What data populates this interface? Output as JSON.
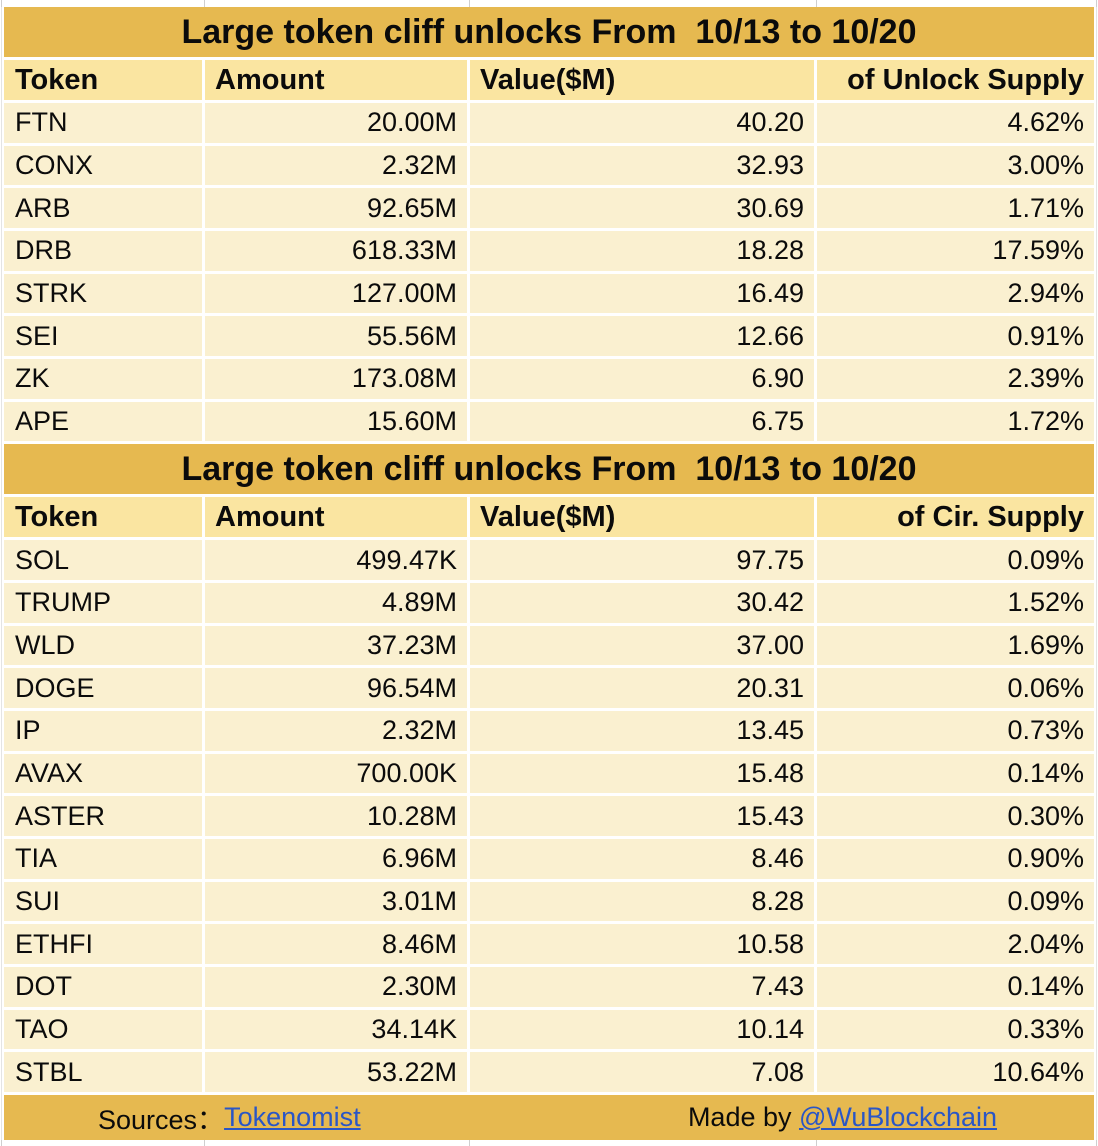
{
  "colors": {
    "title_bg": "#e6b950",
    "header_bg": "#fae5a1",
    "row_bg": "#faf0d0",
    "grid_white": "#ffffff",
    "margin_gridline": "#cfcfcf",
    "link_blue": "#2a56c6",
    "text": "#0b0b0b"
  },
  "tables": [
    {
      "title": "Large token cliff unlocks From  10/13 to 10/20",
      "columns": [
        "Token",
        "Amount",
        "Value($M)",
        "of Unlock Supply"
      ],
      "rows": [
        [
          "FTN",
          "20.00M",
          "40.20",
          "4.62%"
        ],
        [
          "CONX",
          "2.32M",
          "32.93",
          "3.00%"
        ],
        [
          "ARB",
          "92.65M",
          "30.69",
          "1.71%"
        ],
        [
          "DRB",
          "618.33M",
          "18.28",
          "17.59%"
        ],
        [
          "STRK",
          "127.00M",
          "16.49",
          "2.94%"
        ],
        [
          "SEI",
          "55.56M",
          "12.66",
          "0.91%"
        ],
        [
          "ZK",
          "173.08M",
          "6.90",
          "2.39%"
        ],
        [
          "APE",
          "15.60M",
          "6.75",
          "1.72%"
        ]
      ]
    },
    {
      "title": "Large token cliff unlocks From  10/13 to 10/20",
      "columns": [
        "Token",
        "Amount",
        "Value($M)",
        "of Cir. Supply"
      ],
      "rows": [
        [
          "SOL",
          "499.47K",
          "97.75",
          "0.09%"
        ],
        [
          "TRUMP",
          "4.89M",
          "30.42",
          "1.52%"
        ],
        [
          "WLD",
          "37.23M",
          "37.00",
          "1.69%"
        ],
        [
          "DOGE",
          "96.54M",
          "20.31",
          "0.06%"
        ],
        [
          "IP",
          "2.32M",
          "13.45",
          "0.73%"
        ],
        [
          "AVAX",
          "700.00K",
          "15.48",
          "0.14%"
        ],
        [
          "ASTER",
          "10.28M",
          "15.43",
          "0.30%"
        ],
        [
          "TIA",
          "6.96M",
          "8.46",
          "0.90%"
        ],
        [
          "SUI",
          "3.01M",
          "8.28",
          "0.09%"
        ],
        [
          "ETHFI",
          "8.46M",
          "10.58",
          "2.04%"
        ],
        [
          "DOT",
          "2.30M",
          "7.43",
          "0.14%"
        ],
        [
          "TAO",
          "34.14K",
          "10.14",
          "0.33%"
        ],
        [
          "STBL",
          "53.22M",
          "7.08",
          "10.64%"
        ]
      ]
    }
  ],
  "footer": {
    "sources_label": "Sources：",
    "source_link": "Tokenomist",
    "made_by": "Made by ",
    "author_link": "@WuBlockchain"
  }
}
